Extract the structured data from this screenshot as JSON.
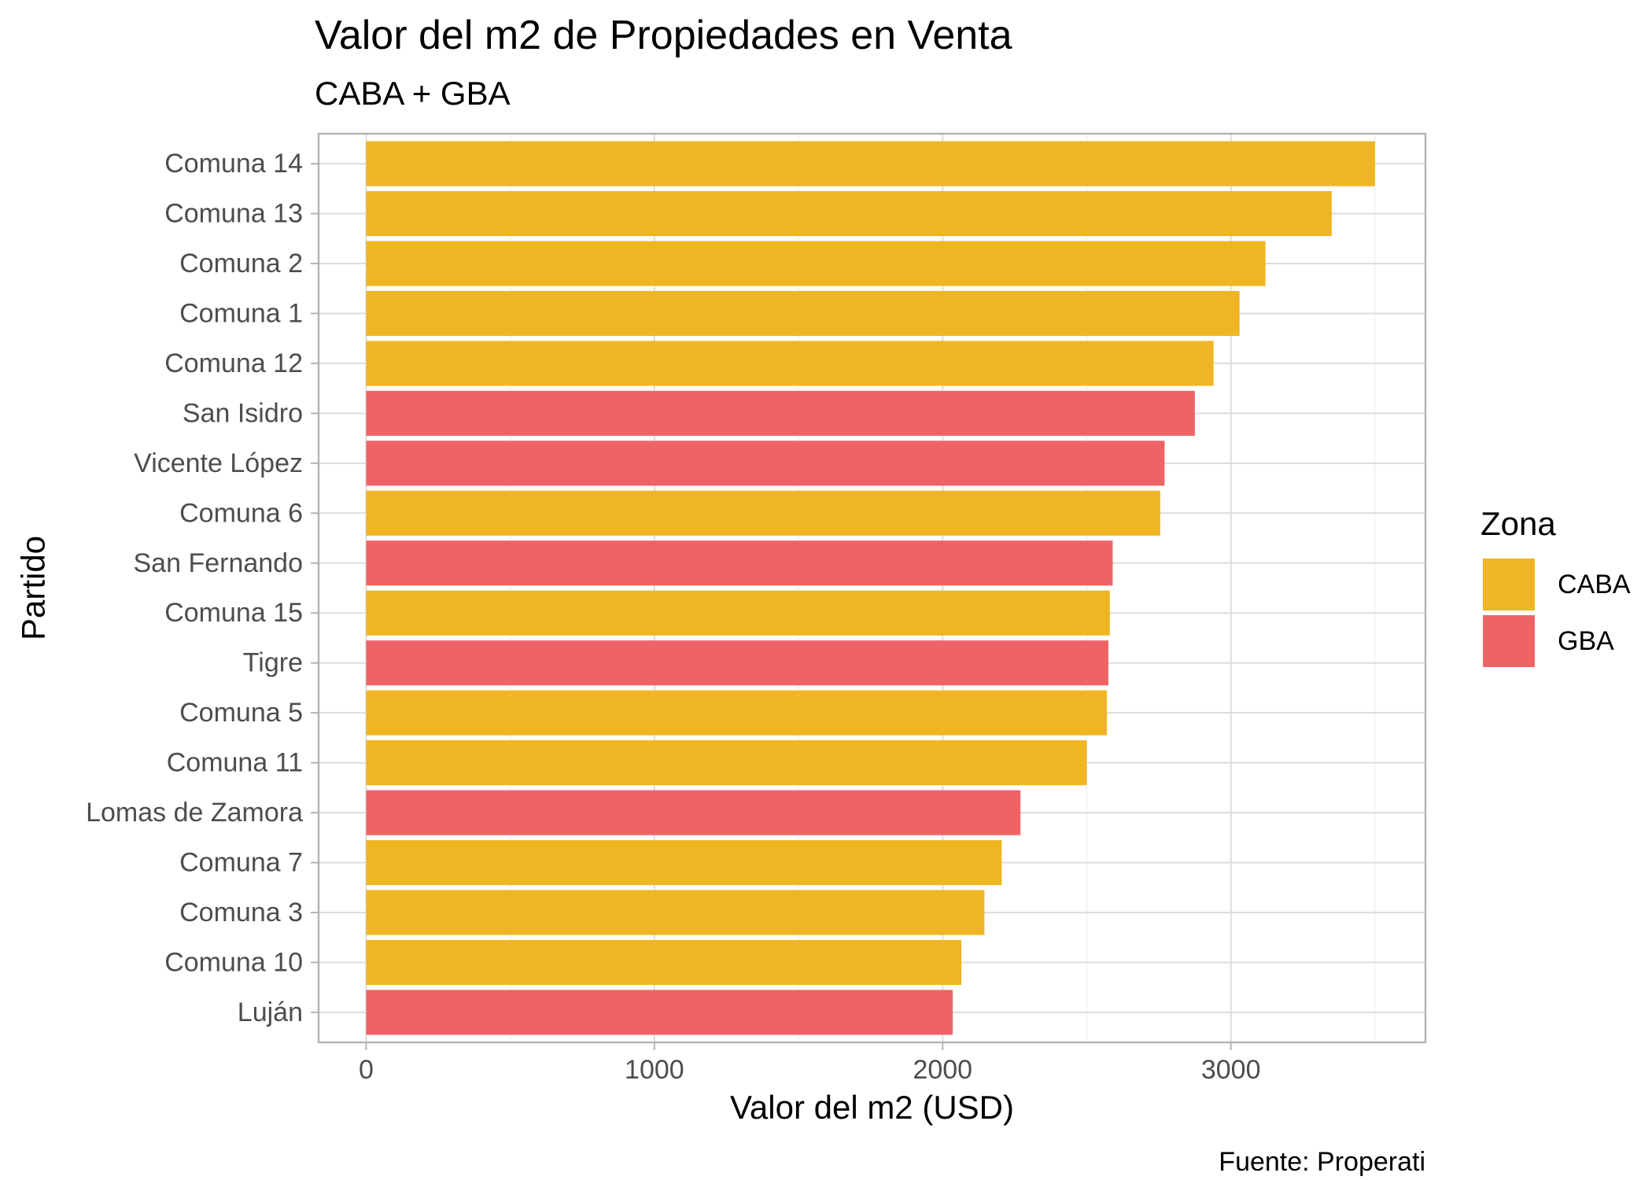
{
  "chart_data": {
    "type": "bar",
    "orientation": "horizontal",
    "title": "Valor del m2 de Propiedades en Venta",
    "subtitle": "CABA + GBA",
    "xlabel": "Valor del m2 (USD)",
    "ylabel": "Partido",
    "caption": "Fuente: Properati",
    "xlim": [
      -165,
      3675
    ],
    "x_ticks": [
      0,
      1000,
      2000,
      3000
    ],
    "x_minor_ticks": [
      500,
      1500,
      2500,
      3500
    ],
    "grid": true,
    "legend": {
      "title": "Zona",
      "placement": "right",
      "entries": [
        {
          "label": "CABA",
          "color": "#EFB522"
        },
        {
          "label": "GBA",
          "color": "#EF6366"
        }
      ]
    },
    "categories": [
      "Comuna 14",
      "Comuna 13",
      "Comuna 2",
      "Comuna 1",
      "Comuna 12",
      "San Isidro",
      "Vicente López",
      "Comuna 6",
      "San Fernando",
      "Comuna 15",
      "Tigre",
      "Comuna 5",
      "Comuna 11",
      "Lomas de Zamora",
      "Comuna 7",
      "Comuna 3",
      "Comuna 10",
      "Luján"
    ],
    "values": [
      3500,
      3350,
      3120,
      3030,
      2940,
      2875,
      2770,
      2755,
      2590,
      2580,
      2575,
      2570,
      2500,
      2270,
      2205,
      2145,
      2065,
      2035
    ],
    "zones": [
      "CABA",
      "CABA",
      "CABA",
      "CABA",
      "CABA",
      "GBA",
      "GBA",
      "CABA",
      "GBA",
      "CABA",
      "GBA",
      "CABA",
      "CABA",
      "GBA",
      "CABA",
      "CABA",
      "CABA",
      "GBA"
    ]
  }
}
